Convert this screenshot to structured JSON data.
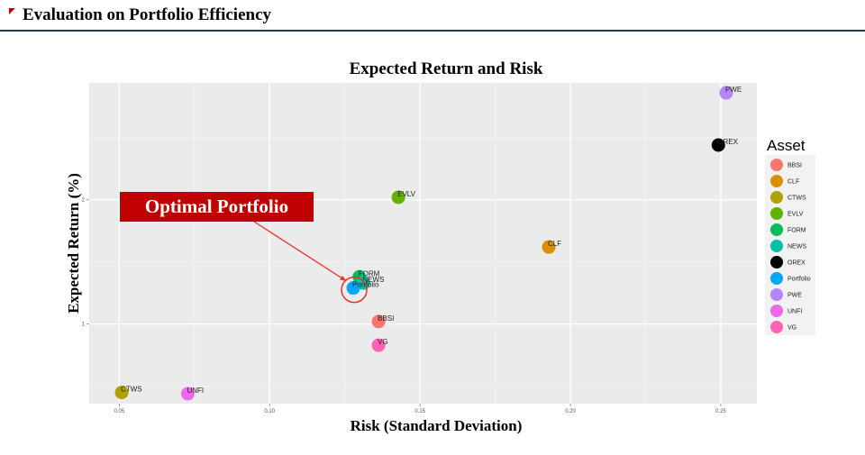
{
  "header": {
    "title": "Evaluation on Portfolio Efficiency"
  },
  "callout": {
    "label": "Optimal Portfolio",
    "target": "Portfolio"
  },
  "colors": {
    "accent": "#c00000",
    "panel": "#ebebeb",
    "header_rule": "#1f3d4a"
  },
  "chart_data": {
    "type": "scatter",
    "title": "Expected Return and Risk",
    "xlabel": "Risk (Standard Deviation)",
    "ylabel": "Expected Return (%)",
    "xlim": [
      0.04,
      0.262
    ],
    "ylim": [
      0.36,
      2.94
    ],
    "x_ticks": [
      0.05,
      0.1,
      0.15,
      0.2,
      0.25
    ],
    "x_tick_labels": [
      "0.05",
      "0.10",
      "0.15",
      "0.20",
      "0.25"
    ],
    "y_ticks": [
      1,
      2
    ],
    "y_tick_labels": [
      "1",
      "2"
    ],
    "grid": true,
    "legend_title": "Asset",
    "legend_position": "right",
    "points": [
      {
        "name": "BBSI",
        "x": 0.1362,
        "y": 1.02,
        "color": "#f8766d"
      },
      {
        "name": "CLF",
        "x": 0.1928,
        "y": 1.62,
        "color": "#db8e00"
      },
      {
        "name": "CTWS",
        "x": 0.0508,
        "y": 0.45,
        "color": "#aea200"
      },
      {
        "name": "EVLV",
        "x": 0.1428,
        "y": 2.02,
        "color": "#64b200"
      },
      {
        "name": "FORM",
        "x": 0.1298,
        "y": 1.38,
        "color": "#00bd5c"
      },
      {
        "name": "NEWS",
        "x": 0.1312,
        "y": 1.33,
        "color": "#00c1a7"
      },
      {
        "name": "OREX",
        "x": 0.2492,
        "y": 2.44,
        "color": "#00badе"
      },
      {
        "name": "Portfolio",
        "x": 0.1278,
        "y": 1.29,
        "color": "#00a6ff"
      },
      {
        "name": "PWE",
        "x": 0.2518,
        "y": 2.86,
        "color": "#b385ff"
      },
      {
        "name": "UNFI",
        "x": 0.0728,
        "y": 0.44,
        "color": "#ef67eb"
      },
      {
        "name": "VG",
        "x": 0.1362,
        "y": 0.83,
        "color": "#ff63b6"
      }
    ]
  }
}
